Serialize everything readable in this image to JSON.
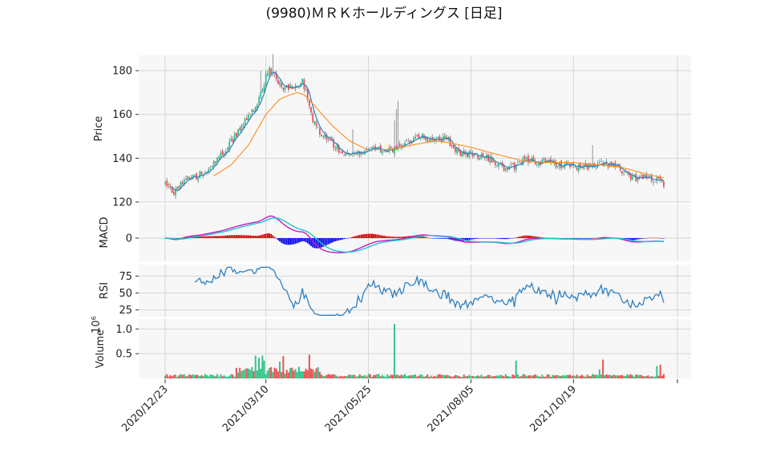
{
  "title": "(9980)ＭＲＫホールディングス  [日足]",
  "chart_data": {
    "type": "candlestick",
    "title": "(9980)ＭＲＫホールディングス  [日足]",
    "x_tick_labels": [
      "2020/12/23",
      "2021/03/10",
      "2021/05/25",
      "2021/08/05",
      "2021/10/19"
    ],
    "panels": {
      "price": {
        "ylabel": "Price",
        "yticks": [
          120,
          140,
          160,
          180
        ],
        "ylim": [
          120,
          187
        ],
        "anchors": [
          [
            0,
            128
          ],
          [
            5,
            125
          ],
          [
            9,
            128
          ],
          [
            13,
            131
          ],
          [
            19,
            132
          ],
          [
            25,
            136
          ],
          [
            31,
            140
          ],
          [
            40,
            150
          ],
          [
            47,
            158
          ],
          [
            53,
            165
          ],
          [
            57,
            175
          ],
          [
            60,
            181
          ],
          [
            64,
            176
          ],
          [
            68,
            172
          ],
          [
            74,
            172
          ],
          [
            79,
            175
          ],
          [
            81,
            170
          ],
          [
            85,
            157
          ],
          [
            90,
            151
          ],
          [
            96,
            147
          ],
          [
            101,
            143
          ],
          [
            106,
            141
          ],
          [
            113,
            143
          ],
          [
            119,
            145
          ],
          [
            125,
            144
          ],
          [
            131,
            144
          ],
          [
            136,
            145
          ],
          [
            141,
            148
          ],
          [
            146,
            150
          ],
          [
            152,
            149
          ],
          [
            158,
            149
          ],
          [
            162,
            149
          ],
          [
            167,
            144
          ],
          [
            171,
            142
          ],
          [
            176,
            142
          ],
          [
            181,
            141
          ],
          [
            186,
            140
          ],
          [
            190,
            138
          ],
          [
            196,
            135
          ],
          [
            202,
            136
          ],
          [
            206,
            139
          ],
          [
            211,
            139
          ],
          [
            217,
            138
          ],
          [
            222,
            138
          ],
          [
            227,
            137
          ],
          [
            233,
            137
          ],
          [
            238,
            136
          ],
          [
            243,
            136
          ],
          [
            248,
            136
          ],
          [
            252,
            138
          ],
          [
            256,
            137
          ],
          [
            260,
            136
          ],
          [
            264,
            133
          ],
          [
            268,
            131
          ],
          [
            273,
            131
          ],
          [
            278,
            131
          ],
          [
            283,
            130
          ],
          [
            287,
            128
          ]
        ],
        "ma_long_anchors": [
          [
            28,
            132
          ],
          [
            38,
            137
          ],
          [
            48,
            146
          ],
          [
            58,
            160
          ],
          [
            66,
            167
          ],
          [
            72,
            169
          ],
          [
            76,
            170
          ],
          [
            80,
            169
          ],
          [
            86,
            164
          ],
          [
            96,
            155
          ],
          [
            106,
            148
          ],
          [
            116,
            144
          ],
          [
            130,
            144
          ],
          [
            142,
            146
          ],
          [
            155,
            148
          ],
          [
            164,
            147
          ],
          [
            176,
            145
          ],
          [
            190,
            142
          ],
          [
            205,
            139
          ],
          [
            220,
            138
          ],
          [
            235,
            138
          ],
          [
            250,
            137
          ],
          [
            262,
            136
          ],
          [
            276,
            133
          ],
          [
            287,
            131
          ]
        ],
        "spikes": [
          [
            132,
            0.6
          ],
          [
            134,
            1.1
          ],
          [
            133,
            0.9
          ],
          [
            108,
            0.5
          ],
          [
            55,
            0.5
          ],
          [
            62,
            0.4
          ],
          [
            246,
            0.4
          ]
        ]
      },
      "macd": {
        "ylabel": "MACD",
        "yticks": [
          0
        ]
      },
      "rsi": {
        "ylabel": "RSI",
        "yticks": [
          25,
          50,
          75
        ],
        "ylim": [
          15,
          92
        ]
      },
      "volume": {
        "ylabel": "Volume",
        "exponent_label": "10⁶",
        "yticks": [
          0.5,
          1.0
        ],
        "ylim": [
          0,
          1.2
        ],
        "spikes": [
          [
            132,
            1.1
          ],
          [
            52,
            0.46
          ],
          [
            54,
            0.42
          ],
          [
            56,
            0.46
          ],
          [
            57,
            0.36
          ],
          [
            66,
            0.34
          ],
          [
            68,
            0.45
          ],
          [
            83,
            0.48
          ],
          [
            202,
            0.36
          ],
          [
            252,
            0.38
          ],
          [
            250,
            0.18
          ],
          [
            283,
            0.25
          ],
          [
            285,
            0.28
          ]
        ]
      }
    },
    "colors": {
      "up": "#35c28a",
      "down": "#ef4f4f",
      "ma_short": "#2e7fc0",
      "ma_long": "#ff8c1a",
      "macd_line": "#c21cc2",
      "signal_line": "#1ec3d1",
      "hist_pos": "#cc0000",
      "hist_neg": "#0000ee",
      "rsi_line": "#2e7fc0",
      "plot_bg": "#f7f7f7",
      "grid": "#d5d5d5"
    }
  }
}
